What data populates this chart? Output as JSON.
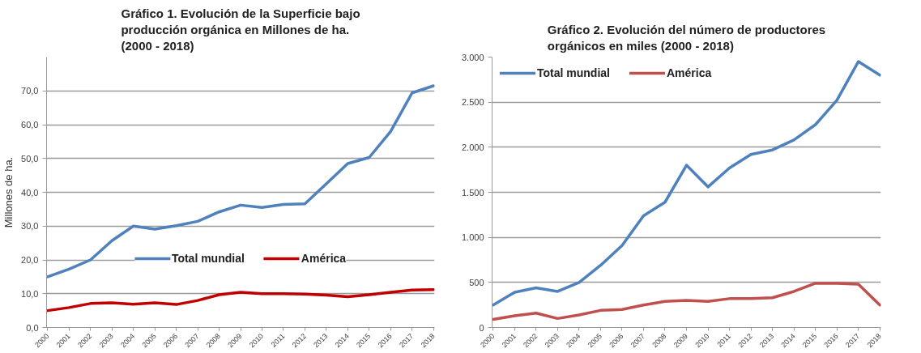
{
  "chart_data": [
    {
      "type": "line",
      "title": "Gráfico 1. Evolución de la Superficie bajo\nproducción orgánica en Millones de ha.\n(2000 - 2018)",
      "ylabel": "Millones de ha.",
      "categories": [
        "2000",
        "2001",
        "2002",
        "2003",
        "2004",
        "2005",
        "2006",
        "2007",
        "2008",
        "2009",
        "2010",
        "2011",
        "2012",
        "2013",
        "2014",
        "2015",
        "2016",
        "2017",
        "2018"
      ],
      "series": [
        {
          "name": "Total mundial",
          "color": "#4f81bd",
          "values": [
            15.0,
            17.3,
            20.0,
            25.7,
            30.0,
            29.1,
            30.1,
            31.4,
            34.2,
            36.2,
            35.5,
            36.4,
            36.6,
            42.5,
            48.5,
            50.3,
            58.0,
            69.4,
            71.5
          ]
        },
        {
          "name": "América",
          "color": "#c00000",
          "values": [
            5.0,
            5.9,
            7.1,
            7.3,
            6.9,
            7.3,
            6.8,
            8.0,
            9.7,
            10.4,
            10.0,
            10.0,
            9.9,
            9.6,
            9.1,
            9.7,
            10.4,
            11.1,
            11.2
          ]
        }
      ],
      "ylim": [
        0,
        80
      ],
      "yticks": [
        {
          "value": 0,
          "label": "0,0"
        },
        {
          "value": 10,
          "label": "10,0"
        },
        {
          "value": 20,
          "label": "20,0"
        },
        {
          "value": 30,
          "label": "30,0"
        },
        {
          "value": 40,
          "label": "40,0"
        },
        {
          "value": 50,
          "label": "50,0"
        },
        {
          "value": 60,
          "label": "60,0"
        },
        {
          "value": 70,
          "label": "70,0"
        }
      ],
      "grid": "y",
      "legend": "bottom"
    },
    {
      "type": "line",
      "title": "Gráfico 2. Evolución del número de productores\norgánicos en miles (2000 - 2018)",
      "categories": [
        "2000",
        "2001",
        "2002",
        "2003",
        "2004",
        "2005",
        "2006",
        "2007",
        "2008",
        "2009",
        "2010",
        "2011",
        "2012",
        "2013",
        "2014",
        "2015",
        "2016",
        "2017",
        "2018"
      ],
      "series": [
        {
          "name": "Total mundial",
          "color": "#4f81bd",
          "values": [
            250,
            390,
            440,
            400,
            500,
            690,
            910,
            1240,
            1390,
            1800,
            1560,
            1770,
            1920,
            1970,
            2080,
            2250,
            2520,
            2950,
            2800
          ]
        },
        {
          "name": "América",
          "color": "#c0504d",
          "values": [
            90,
            130,
            160,
            100,
            140,
            190,
            200,
            250,
            290,
            300,
            290,
            320,
            320,
            330,
            400,
            490,
            490,
            480,
            250
          ]
        }
      ],
      "ylim": [
        0,
        3000
      ],
      "yticks": [
        0,
        500,
        {
          "value": 1000,
          "label": "1.000"
        },
        {
          "value": 1500,
          "label": "1.500"
        },
        {
          "value": 2000,
          "label": "2.000"
        },
        {
          "value": 2500,
          "label": "2.500"
        },
        {
          "value": 3000,
          "label": "3.000"
        }
      ],
      "grid": "y",
      "legend": "top left"
    }
  ]
}
